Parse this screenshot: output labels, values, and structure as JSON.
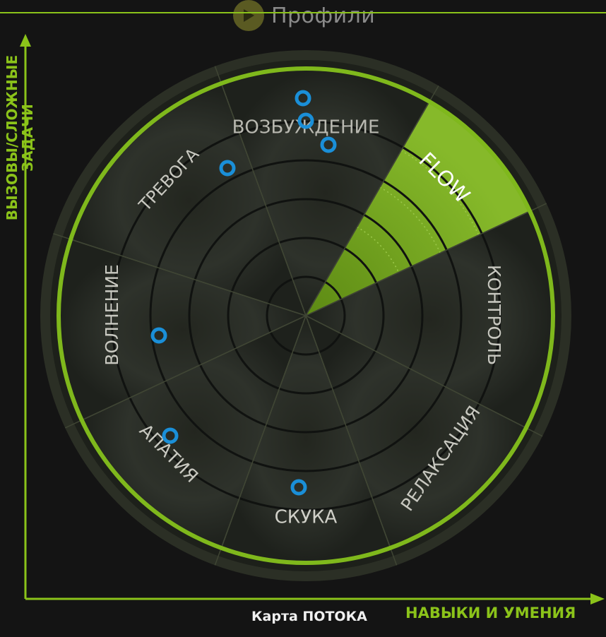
{
  "header": {
    "link_label": "Профили",
    "icon": "play-icon"
  },
  "axes": {
    "y_label_line1": "ВЫЗОВЫ/СЛОЖНЫЕ",
    "y_label_line2": "ЗАДАЧИ",
    "x_label": "НАВЫКИ И УМЕНИЯ"
  },
  "caption": "Карта ПОТОКА",
  "wheel": {
    "sectors": [
      {
        "label": "ВОЗБУЖДЕНИЕ",
        "highlight": false
      },
      {
        "label": "FLOW",
        "highlight": true
      },
      {
        "label": "КОНТРОЛЬ",
        "highlight": false
      },
      {
        "label": "РЕЛАКСАЦИЯ",
        "highlight": false
      },
      {
        "label": "СКУКА",
        "highlight": false
      },
      {
        "label": "АПАТИЯ",
        "highlight": false
      },
      {
        "label": "ВОЛНЕНИЕ",
        "highlight": false
      },
      {
        "label": "ТРЕВОГА",
        "highlight": false
      }
    ],
    "colors": {
      "accent": "#7fb81c",
      "flow_fill": "#6e9e1a",
      "sector_fill": "#2c2f2a",
      "ring": "#343a2a",
      "marker": "#1a8fd8"
    }
  }
}
